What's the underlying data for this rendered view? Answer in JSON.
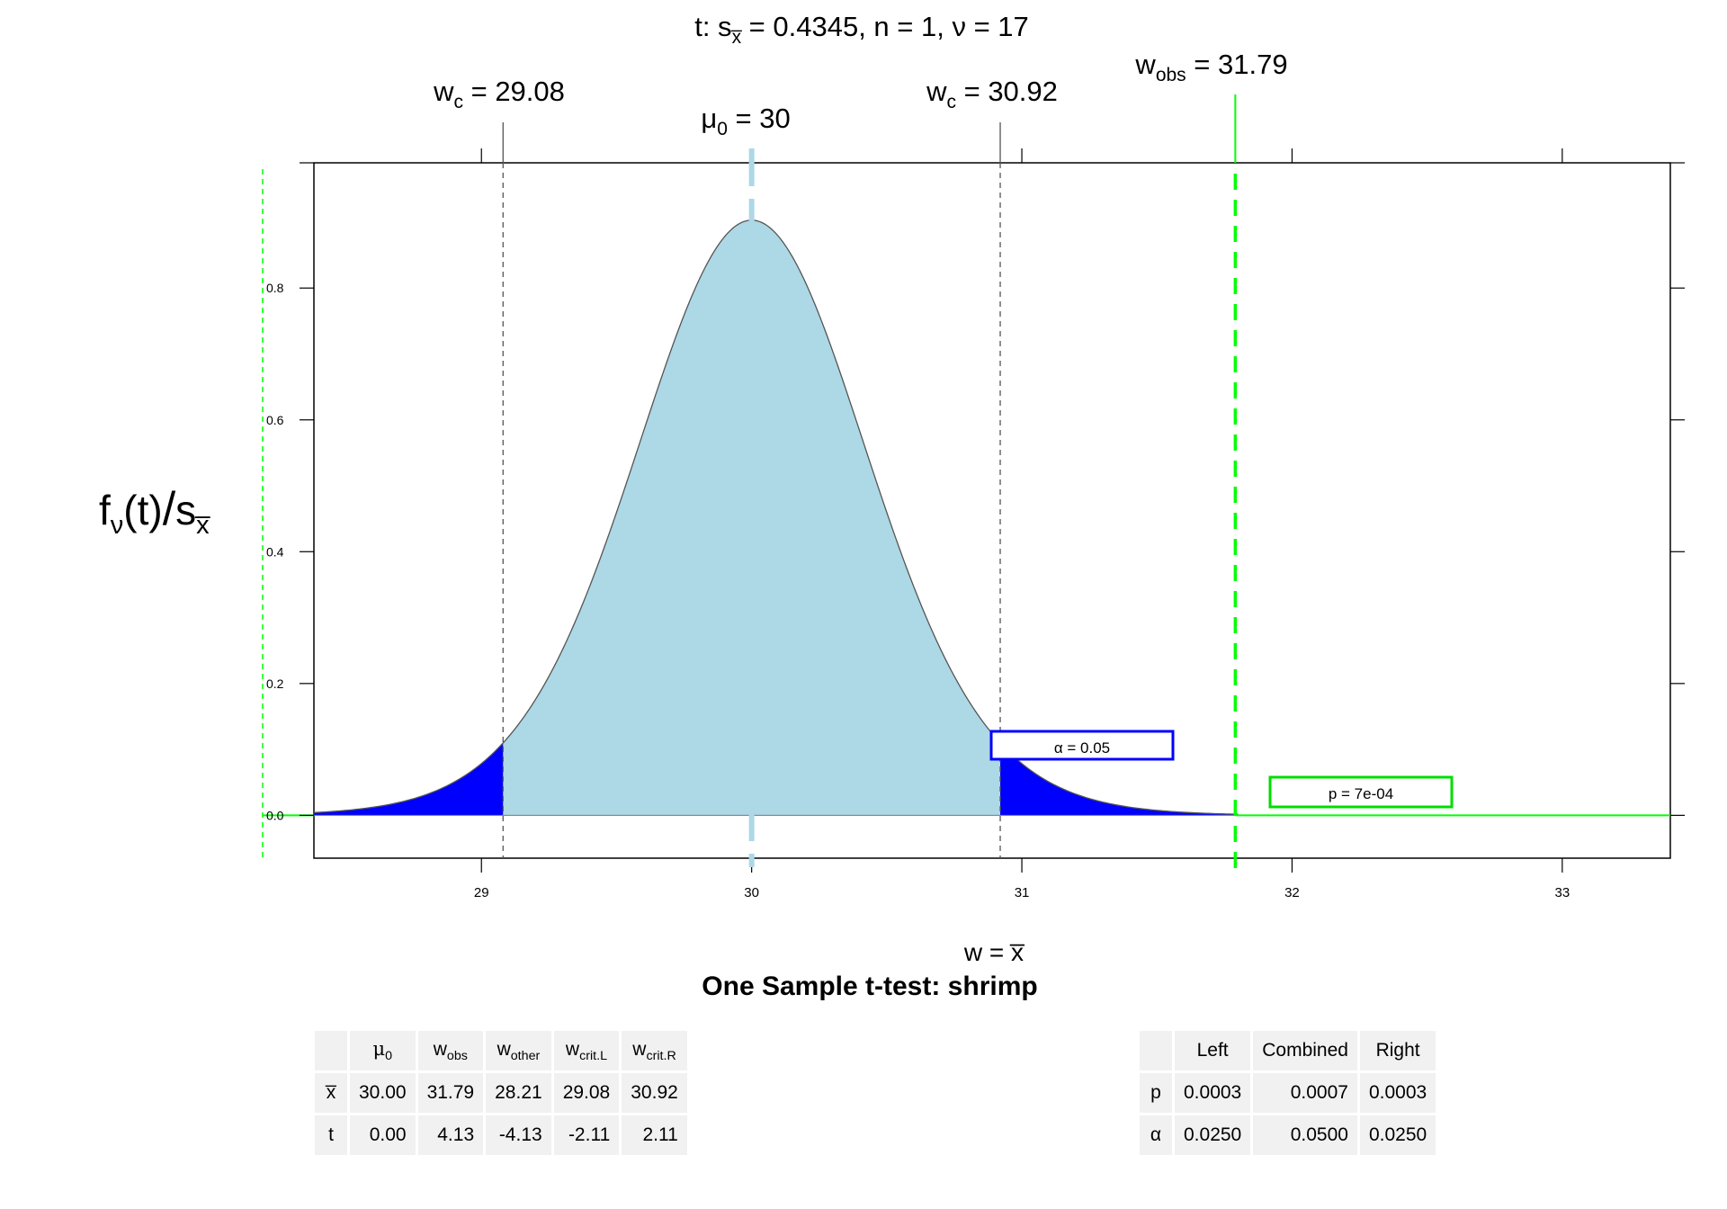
{
  "chart_data": {
    "type": "area",
    "title": "t: s̅x̅ = 0.4345,  n = 1,  ν = 17",
    "title_parts": {
      "prefix": "t: s",
      "sub": "x̅",
      "rest": " = 0.4345,  n = 1,  ν = 17"
    },
    "subtitle": "One Sample t-test: shrimp",
    "xlabel": "w = x̅",
    "ylabel_parts": {
      "f": "f",
      "sub": "ν",
      "mid": "(t)",
      "slash": "/",
      "s": "s",
      "ssub": "x̅"
    },
    "xlim": [
      28.38,
      33.4
    ],
    "ylim": [
      -0.065,
      0.99
    ],
    "x_ticks": [
      29,
      30,
      31,
      32,
      33
    ],
    "y_ticks": [
      0.0,
      0.2,
      0.4,
      0.6,
      0.8
    ],
    "y_tick_labels": [
      "0.0",
      "0.2",
      "0.4",
      "0.6",
      "0.8"
    ],
    "distribution": {
      "name": "t",
      "df": 17,
      "mu0": 30,
      "sxbar": 0.4345,
      "n": 1,
      "peak_density": 0.903
    },
    "mu0": 30,
    "w_crit_left": 29.08,
    "w_crit_right": 30.92,
    "w_obs": 31.79,
    "labels": {
      "wc_left": {
        "base": "w",
        "sub": "c",
        "rest": " = 29.08"
      },
      "wc_right": {
        "base": "w",
        "sub": "c",
        "rest": " = 30.92"
      },
      "mu0": {
        "base": "μ",
        "sub": "0",
        "rest": " = 30"
      },
      "wobs": {
        "base": "w",
        "sub": "obs",
        "rest": " = 31.79"
      }
    },
    "annotations": {
      "alpha": "α = 0.05",
      "p": "p = 7e-04"
    },
    "colors": {
      "body": "#add8e6",
      "rejection": "#0000ff",
      "observed": "#00ff00",
      "mu0_line": "#add8e6",
      "crit_line": "#555555",
      "alpha_box": "#0000ff",
      "p_box": "#00dd00"
    }
  },
  "stats_table": {
    "columns": [
      {
        "base": "μ",
        "sub": "0"
      },
      {
        "base": "w",
        "sub": "obs"
      },
      {
        "base": "w",
        "sub": "other"
      },
      {
        "base": "w",
        "sub": "crit.L"
      },
      {
        "base": "w",
        "sub": "crit.R"
      }
    ],
    "rows": [
      {
        "label": "x̅",
        "values": [
          "30.00",
          "31.79",
          "28.21",
          "29.08",
          "30.92"
        ]
      },
      {
        "label": "t",
        "values": [
          "0.00",
          "4.13",
          "-4.13",
          "-2.11",
          "2.11"
        ]
      }
    ]
  },
  "prob_table": {
    "columns": [
      "Left",
      "Combined",
      "Right"
    ],
    "rows": [
      {
        "label": "p",
        "values": [
          "0.0003",
          "0.0007",
          "0.0003"
        ]
      },
      {
        "label": "α",
        "values": [
          "0.0250",
          "0.0500",
          "0.0250"
        ]
      }
    ]
  }
}
